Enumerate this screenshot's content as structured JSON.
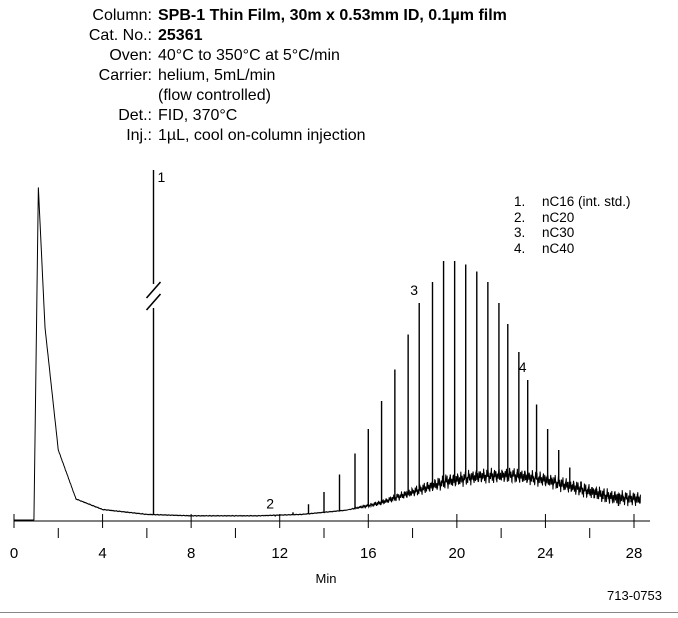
{
  "header": {
    "rows": [
      {
        "label": "Column:",
        "value": "SPB-1 Thin Film,  30m x 0.53mm ID, 0.1µm film",
        "bold": true
      },
      {
        "label": "Cat. No.:",
        "value": "25361",
        "bold": true
      },
      {
        "label": "Oven:",
        "value": "40°C to 350°C at 5°C/min",
        "bold": false
      },
      {
        "label": "Carrier:",
        "value": "helium, 5mL/min",
        "bold": false
      },
      {
        "label": "",
        "value": "(flow controlled)",
        "bold": false
      },
      {
        "label": "Det.:",
        "value": "FID, 370°C",
        "bold": false
      },
      {
        "label": "Inj.:",
        "value": "1µL, cool on-column injection",
        "bold": false
      }
    ]
  },
  "legend": [
    {
      "num": "1.",
      "name": "nC16 (int. std.)"
    },
    {
      "num": "2.",
      "name": "nC20"
    },
    {
      "num": "3.",
      "name": "nC30"
    },
    {
      "num": "4.",
      "name": "nC40"
    }
  ],
  "chart_data": {
    "type": "line",
    "title": "",
    "xlabel": "Min",
    "ylabel": "",
    "xlim": [
      0,
      28.5
    ],
    "ylim": [
      0,
      100
    ],
    "x_tick_labels": [
      "0",
      "4",
      "8",
      "12",
      "16",
      "20",
      "24",
      "28"
    ],
    "x_ticks": [
      0,
      4,
      8,
      12,
      16,
      20,
      24,
      28
    ],
    "x_minor_ticks": [
      2,
      6,
      10,
      14,
      18,
      22,
      26
    ],
    "grid": false,
    "axis_break_at_peak": "1",
    "baseline_drift": {
      "x": [
        0.9,
        1.1,
        1.4,
        2.0,
        2.8,
        4.0,
        6.0,
        8.0,
        11.0,
        13.0,
        15.0,
        16.5,
        18.0,
        19.5,
        21.0,
        22.5,
        24.0,
        25.5,
        27.0,
        28.3
      ],
      "y": [
        0,
        95,
        55,
        20,
        6,
        3,
        1.6,
        1.2,
        1.2,
        1.6,
        2.8,
        4.8,
        8,
        11,
        12.5,
        12.8,
        11.5,
        9,
        6.5,
        6
      ]
    },
    "peaks": [
      {
        "x": 6.3,
        "y": 100,
        "label": "1"
      },
      {
        "x": 11.8,
        "y": 1.0,
        "label": "2"
      },
      {
        "x": 12.6,
        "y": 2.2
      },
      {
        "x": 13.3,
        "y": 4.5
      },
      {
        "x": 14.0,
        "y": 8
      },
      {
        "x": 14.7,
        "y": 13
      },
      {
        "x": 15.4,
        "y": 19
      },
      {
        "x": 16.0,
        "y": 26
      },
      {
        "x": 16.6,
        "y": 34
      },
      {
        "x": 17.2,
        "y": 43
      },
      {
        "x": 17.8,
        "y": 53
      },
      {
        "x": 18.3,
        "y": 62,
        "label": "3"
      },
      {
        "x": 18.9,
        "y": 68
      },
      {
        "x": 19.4,
        "y": 74
      },
      {
        "x": 19.9,
        "y": 74
      },
      {
        "x": 20.4,
        "y": 73
      },
      {
        "x": 20.9,
        "y": 71
      },
      {
        "x": 21.4,
        "y": 68
      },
      {
        "x": 21.9,
        "y": 62
      },
      {
        "x": 22.3,
        "y": 56
      },
      {
        "x": 22.8,
        "y": 48
      },
      {
        "x": 23.2,
        "y": 40,
        "label": "4"
      },
      {
        "x": 23.6,
        "y": 33
      },
      {
        "x": 24.1,
        "y": 26
      },
      {
        "x": 24.6,
        "y": 20
      },
      {
        "x": 25.1,
        "y": 15
      },
      {
        "x": 25.6,
        "y": 11
      },
      {
        "x": 26.1,
        "y": 8
      },
      {
        "x": 26.6,
        "y": 6
      },
      {
        "x": 27.3,
        "y": 4
      }
    ]
  },
  "footer": {
    "code": "713-0753"
  }
}
